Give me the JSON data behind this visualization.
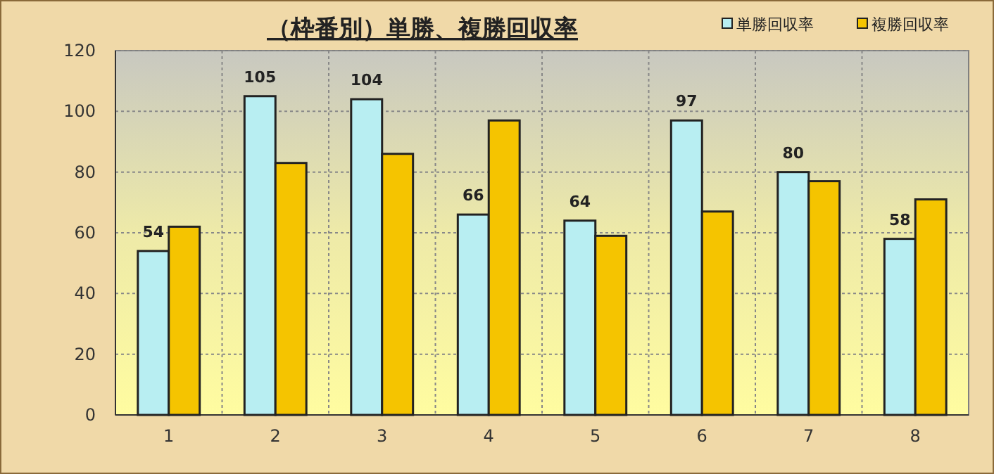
{
  "chart_data": {
    "type": "bar",
    "title": "（枠番別）単勝、複勝回収率",
    "categories": [
      "1",
      "2",
      "3",
      "4",
      "5",
      "6",
      "7",
      "8"
    ],
    "series": [
      {
        "name": "単勝回収率",
        "color": "#b8eef2",
        "values": [
          54,
          105,
          104,
          66,
          64,
          97,
          80,
          58
        ],
        "value_labels": [
          "54",
          "105",
          "104",
          "66",
          "64",
          "97",
          "80",
          "58"
        ]
      },
      {
        "name": "複勝回収率",
        "color": "#f5c400",
        "values": [
          62,
          83,
          86,
          97,
          59,
          67,
          77,
          71
        ]
      }
    ],
    "ylim": [
      0,
      120
    ],
    "yticks": [
      0,
      20,
      40,
      60,
      80,
      100,
      120
    ],
    "grid": true,
    "legend": "top right"
  }
}
